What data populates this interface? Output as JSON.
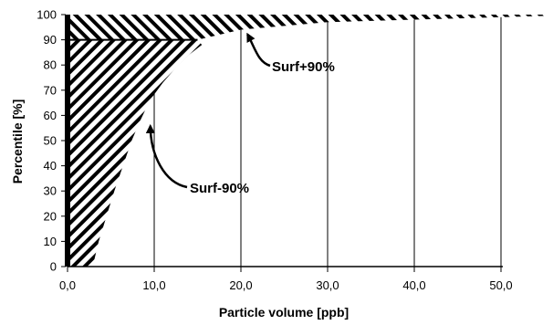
{
  "chart_data": {
    "type": "area",
    "title": "",
    "xlabel": "Particle volume [ppb]",
    "ylabel": "Percentile [%]",
    "xlim": [
      0,
      50
    ],
    "ylim": [
      0,
      100
    ],
    "x_ticks": [
      "0,0",
      "10,0",
      "20,0",
      "30,0",
      "40,0",
      "50,0"
    ],
    "y_ticks": [
      "0",
      "10",
      "20",
      "30",
      "40",
      "50",
      "60",
      "70",
      "80",
      "90",
      "100"
    ],
    "grid": "vertical",
    "series": [
      {
        "label": "Surf-90%",
        "fill": "diagonal hatch (\\\\)",
        "points": [
          [
            2.9,
            0
          ],
          [
            3.6,
            10
          ],
          [
            4.5,
            20
          ],
          [
            5.4,
            30
          ],
          [
            6.4,
            40
          ],
          [
            7.4,
            50
          ],
          [
            8.4,
            58
          ],
          [
            9.5,
            66
          ],
          [
            11.0,
            73
          ],
          [
            12.5,
            79
          ],
          [
            14.0,
            84
          ],
          [
            15.5,
            88
          ],
          [
            17.0,
            91
          ],
          [
            18.2,
            93
          ],
          [
            20.0,
            94
          ],
          [
            22.0,
            95
          ],
          [
            26.0,
            96
          ],
          [
            30.0,
            97
          ],
          [
            40.0,
            97.5
          ],
          [
            50.0,
            98
          ],
          [
            55.2,
            99
          ]
        ]
      },
      {
        "label": "Surf+90%",
        "fill": "diagonal hatch (//)",
        "points": [
          [
            0,
            90
          ],
          [
            15.0,
            90
          ],
          [
            20.0,
            94
          ],
          [
            30.0,
            97
          ],
          [
            40.0,
            98
          ],
          [
            55.2,
            99.5
          ]
        ]
      }
    ],
    "annotations": [
      {
        "text": "Surf+90%",
        "points_to": [
          19.5,
          94
        ]
      },
      {
        "text": "Surf-90%",
        "points_to": [
          8.5,
          58
        ]
      }
    ]
  }
}
